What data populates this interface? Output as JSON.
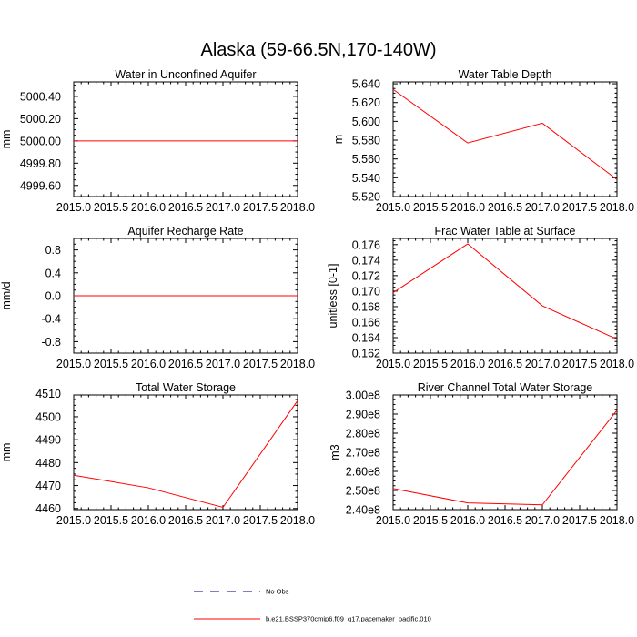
{
  "figure": {
    "title": "Alaska (59-66.5N,170-140W)"
  },
  "chart_data": [
    {
      "type": "line",
      "title": "Water in Unconfined Aquifer",
      "xlabel": "",
      "ylabel": "mm",
      "xlim": [
        2015.0,
        2018.0
      ],
      "ylim": [
        4999.5,
        5000.53
      ],
      "xticks": [
        2015.0,
        2015.5,
        2016.0,
        2016.5,
        2017.0,
        2017.5,
        2018.0
      ],
      "xtick_labels": [
        "2015.0",
        "2015.5",
        "2016.0",
        "2016.5",
        "2017.0",
        "2017.5",
        "2018.0"
      ],
      "yticks": [
        4999.6,
        4999.8,
        5000.0,
        5000.2,
        5000.4
      ],
      "ytick_labels": [
        "4999.60",
        "4999.80",
        "5000.00",
        "5000.20",
        "5000.40"
      ],
      "series": [
        {
          "x": [
            2015.0,
            2016.0,
            2017.0,
            2018.0
          ],
          "values": [
            5000.0,
            5000.0,
            5000.0,
            5000.0
          ],
          "color": "#ff0000"
        }
      ]
    },
    {
      "type": "line",
      "title": "Water Table Depth",
      "xlabel": "",
      "ylabel": "m",
      "xlim": [
        2015.0,
        2018.0
      ],
      "ylim": [
        5.52,
        5.642
      ],
      "xticks": [
        2015.0,
        2015.5,
        2016.0,
        2016.5,
        2017.0,
        2017.5,
        2018.0
      ],
      "xtick_labels": [
        "2015.0",
        "2015.5",
        "2016.0",
        "2016.5",
        "2017.0",
        "2017.5",
        "2018.0"
      ],
      "yticks": [
        5.52,
        5.54,
        5.56,
        5.58,
        5.6,
        5.62,
        5.64
      ],
      "ytick_labels": [
        "5.520",
        "5.540",
        "5.560",
        "5.580",
        "5.600",
        "5.620",
        "5.640"
      ],
      "series": [
        {
          "x": [
            2015.0,
            2016.0,
            2017.0,
            2018.0
          ],
          "values": [
            5.634,
            5.577,
            5.598,
            5.538
          ],
          "color": "#ff0000"
        }
      ]
    },
    {
      "type": "line",
      "title": "Aquifer Recharge Rate",
      "xlabel": "",
      "ylabel": "mm/d",
      "xlim": [
        2015.0,
        2018.0
      ],
      "ylim": [
        -1.0,
        1.0
      ],
      "xticks": [
        2015.0,
        2015.5,
        2016.0,
        2016.5,
        2017.0,
        2017.5,
        2018.0
      ],
      "xtick_labels": [
        "2015.0",
        "2015.5",
        "2016.0",
        "2016.5",
        "2017.0",
        "2017.5",
        "2018.0"
      ],
      "yticks": [
        -0.8,
        -0.4,
        0.0,
        0.4,
        0.8
      ],
      "ytick_labels": [
        "-0.8",
        "-0.4",
        "0.0",
        "0.4",
        "0.8"
      ],
      "series": [
        {
          "x": [
            2015.0,
            2016.0,
            2017.0,
            2018.0
          ],
          "values": [
            0.0,
            0.0,
            0.0,
            0.0
          ],
          "color": "#ff0000"
        }
      ]
    },
    {
      "type": "line",
      "title": "Frac Water Table at Surface",
      "xlabel": "",
      "ylabel": "unitless [0-1]",
      "xlim": [
        2015.0,
        2018.0
      ],
      "ylim": [
        0.162,
        0.1768
      ],
      "xticks": [
        2015.0,
        2015.5,
        2016.0,
        2016.5,
        2017.0,
        2017.5,
        2018.0
      ],
      "xtick_labels": [
        "2015.0",
        "2015.5",
        "2016.0",
        "2016.5",
        "2017.0",
        "2017.5",
        "2018.0"
      ],
      "yticks": [
        0.162,
        0.164,
        0.166,
        0.168,
        0.17,
        0.172,
        0.174,
        0.176
      ],
      "ytick_labels": [
        "0.162",
        "0.164",
        "0.166",
        "0.168",
        "0.170",
        "0.172",
        "0.174",
        "0.176"
      ],
      "series": [
        {
          "x": [
            2015.0,
            2016.0,
            2017.0,
            2018.0
          ],
          "values": [
            0.1698,
            0.1761,
            0.1681,
            0.1638
          ],
          "color": "#ff0000"
        }
      ]
    },
    {
      "type": "line",
      "title": "Total Water Storage",
      "xlabel": "",
      "ylabel": "mm",
      "xlim": [
        2015.0,
        2018.0
      ],
      "ylim": [
        4459.5,
        4509.5
      ],
      "xticks": [
        2015.0,
        2015.5,
        2016.0,
        2016.5,
        2017.0,
        2017.5,
        2018.0
      ],
      "xtick_labels": [
        "2015.0",
        "2015.5",
        "2016.0",
        "2016.5",
        "2017.0",
        "2017.5",
        "2018.0"
      ],
      "yticks": [
        4460,
        4470,
        4480,
        4490,
        4500,
        4510
      ],
      "ytick_labels": [
        "4460",
        "4470",
        "4480",
        "4490",
        "4500",
        "4510"
      ],
      "series": [
        {
          "x": [
            2015.0,
            2016.0,
            2017.0,
            2018.0
          ],
          "values": [
            4474.5,
            4469.0,
            4460.5,
            4507.0
          ],
          "color": "#ff0000"
        }
      ]
    },
    {
      "type": "line",
      "title": "River Channel Total Water Storage",
      "xlabel": "",
      "ylabel": "m3",
      "xlim": [
        2015.0,
        2018.0
      ],
      "ylim": [
        240000000.0,
        300000000.0
      ],
      "xticks": [
        2015.0,
        2015.5,
        2016.0,
        2016.5,
        2017.0,
        2017.5,
        2018.0
      ],
      "xtick_labels": [
        "2015.0",
        "2015.5",
        "2016.0",
        "2016.5",
        "2017.0",
        "2017.5",
        "2018.0"
      ],
      "yticks": [
        240000000.0,
        250000000.0,
        260000000.0,
        270000000.0,
        280000000.0,
        290000000.0,
        300000000.0
      ],
      "ytick_labels": [
        "2.40e8",
        "2.50e8",
        "2.60e8",
        "2.70e8",
        "2.80e8",
        "2.90e8",
        "3.00e8"
      ],
      "series": [
        {
          "x": [
            2015.0,
            2016.0,
            2017.0,
            2018.0
          ],
          "values": [
            251000000.0,
            243500000.0,
            242500000.0,
            292000000.0
          ],
          "color": "#ff0000"
        }
      ]
    }
  ],
  "legend": {
    "placement": "bottom-center",
    "items": [
      {
        "label": "No Obs",
        "color": "#000080",
        "style": "dashed"
      },
      {
        "label": "b.e21.BSSP370cmip6.f09_g17.pacemaker_pacific.010",
        "color": "#ff0000",
        "style": "solid"
      }
    ]
  }
}
